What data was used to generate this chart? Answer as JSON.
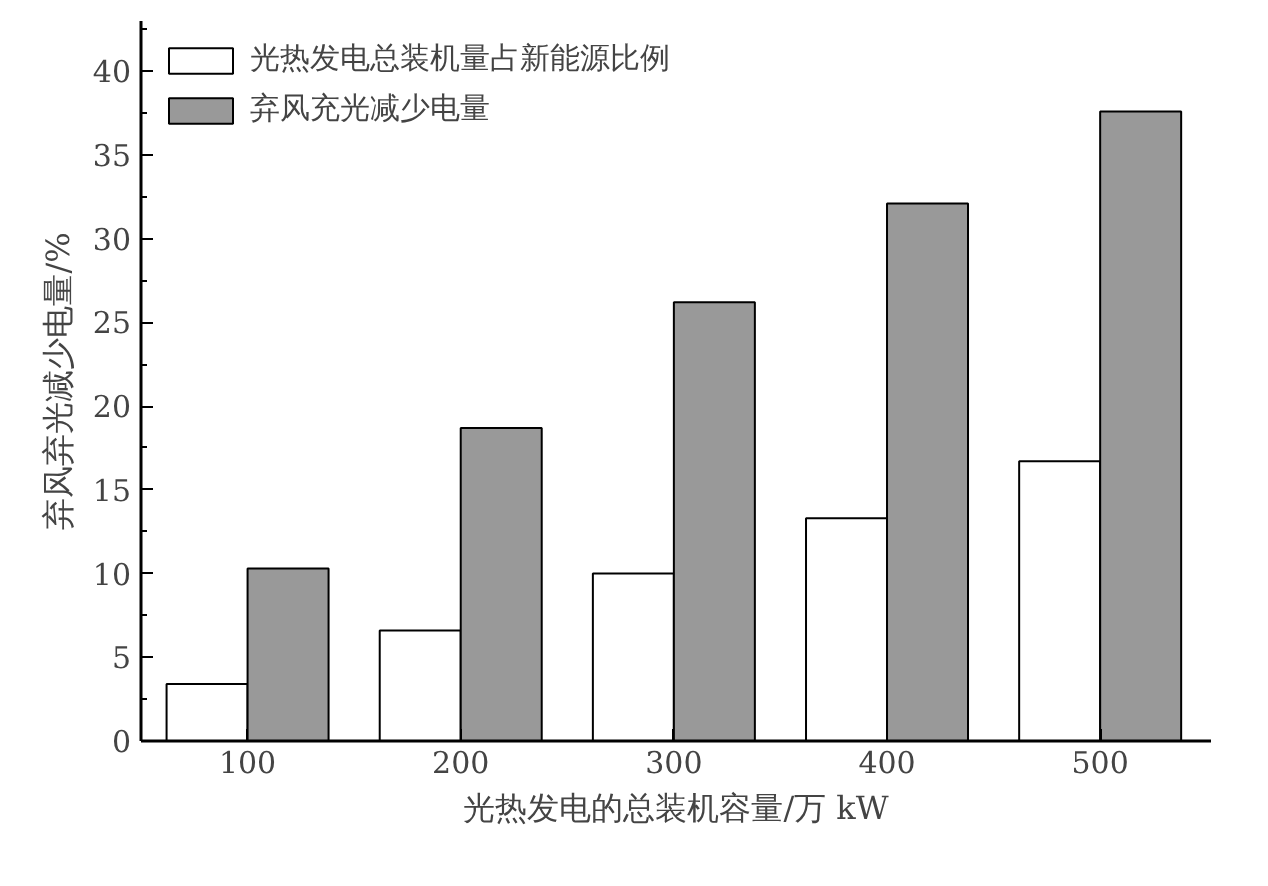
{
  "chart_data": {
    "type": "bar",
    "categories": [
      "100",
      "200",
      "300",
      "400",
      "500"
    ],
    "xlabel": "光热发电的总装机容量/万 kW",
    "ylabel": "弃风弃光减少电量/%",
    "series": [
      {
        "name": "光热发电总装机量占新能源比例",
        "color": "#ffffff",
        "values": [
          3.4,
          6.6,
          10.0,
          13.3,
          16.7
        ]
      },
      {
        "name": "弃风充光减少电量",
        "color": "#999999",
        "values": [
          10.3,
          18.7,
          26.2,
          32.1,
          37.6
        ]
      }
    ],
    "ylim": [
      0,
      43
    ],
    "yticks": [
      0,
      5,
      10,
      15,
      20,
      25,
      30,
      35,
      40
    ],
    "grid": false,
    "legend": "top left"
  }
}
